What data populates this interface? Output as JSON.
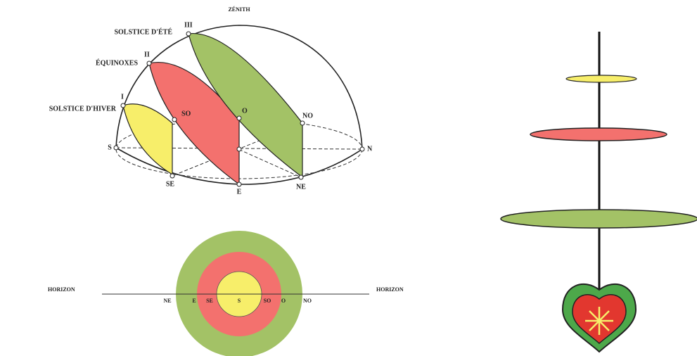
{
  "dome": {
    "zenith": "ZÉNITH",
    "paths": [
      {
        "label": "SOLSTICE D'ÉTÉ",
        "numeral": "III"
      },
      {
        "label": "ÉQUINOXES",
        "numeral": "II"
      },
      {
        "label": "SOLSTICE D'HIVER",
        "numeral": "I"
      }
    ],
    "points": {
      "S": "S",
      "SO": "SO",
      "O": "O",
      "NO": "NO",
      "N": "N",
      "SE": "SE",
      "E": "E",
      "NE": "NE"
    }
  },
  "plan": {
    "horizon_left": "HORIZON",
    "horizon_right": "HORIZON",
    "points": [
      "NE",
      "E",
      "SE",
      "S",
      "SO",
      "O",
      "NO"
    ]
  }
}
